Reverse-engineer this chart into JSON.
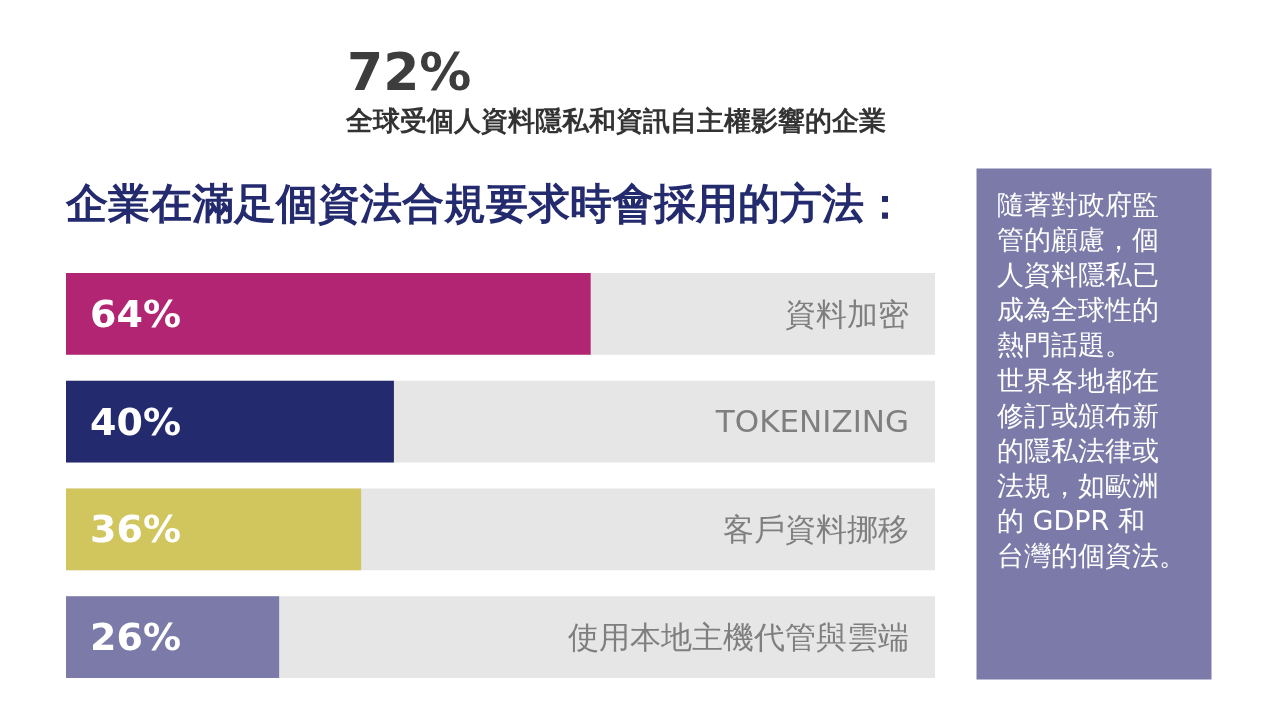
{
  "chart_data": {
    "type": "bar",
    "orientation": "horizontal",
    "title": "企業在滿足個資法合規要求時會採用的方法：",
    "categories": [
      "資料加密",
      "TOKENIZING",
      "客戶資料挪移",
      "使用本地主機代管與雲端"
    ],
    "values": [
      64,
      40,
      36,
      26
    ],
    "value_labels": [
      "64%",
      "40%",
      "36%",
      "26%"
    ],
    "colors": [
      "#b22572",
      "#232a6e",
      "#d1c55d",
      "#7b7aa8"
    ],
    "xlim": [
      0,
      106
    ],
    "tick_labels": "y",
    "annotations": [
      "72%",
      "全球受個人資料隱私和資訊自主權影響的企業",
      "隨著對政府監管的顧慮，個人資料隱私已成為全球性的熱門話題。世界各地都在修訂或頒布新的隱私法律或法規，如歐洲的 GDPR 和台灣的個資法。"
    ]
  }
}
